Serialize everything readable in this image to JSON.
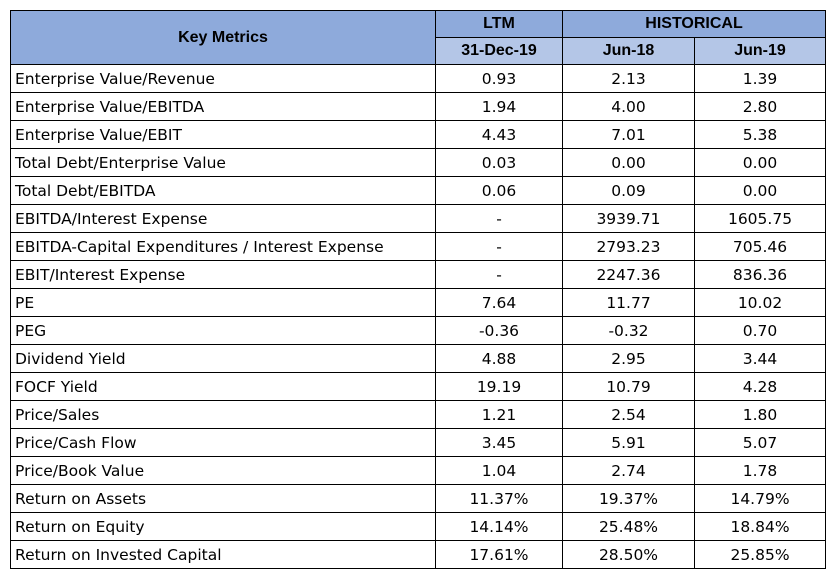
{
  "header": {
    "key_metrics": "Key Metrics",
    "ltm": "LTM",
    "historical": "HISTORICAL",
    "dates": [
      "31-Dec-19",
      "Jun-18",
      "Jun-19"
    ]
  },
  "rows": [
    {
      "label": "Enterprise Value/Revenue",
      "values": [
        "0.93",
        "2.13",
        "1.39"
      ]
    },
    {
      "label": "Enterprise Value/EBITDA",
      "values": [
        "1.94",
        "4.00",
        "2.80"
      ]
    },
    {
      "label": "Enterprise Value/EBIT",
      "values": [
        "4.43",
        "7.01",
        "5.38"
      ]
    },
    {
      "label": "Total Debt/Enterprise Value",
      "values": [
        "0.03",
        "0.00",
        "0.00"
      ]
    },
    {
      "label": "Total Debt/EBITDA",
      "values": [
        "0.06",
        "0.09",
        "0.00"
      ]
    },
    {
      "label": "EBITDA/Interest Expense",
      "values": [
        "-",
        "3939.71",
        "1605.75"
      ]
    },
    {
      "label": "EBITDA-Capital Expenditures / Interest Expense",
      "values": [
        "-",
        "2793.23",
        "705.46"
      ]
    },
    {
      "label": "EBIT/Interest Expense",
      "values": [
        "-",
        "2247.36",
        "836.36"
      ]
    },
    {
      "label": "PE",
      "values": [
        "7.64",
        "11.77",
        "10.02"
      ]
    },
    {
      "label": "PEG",
      "values": [
        "-0.36",
        "-0.32",
        "0.70"
      ]
    },
    {
      "label": "Dividend Yield",
      "values": [
        "4.88",
        "2.95",
        "3.44"
      ]
    },
    {
      "label": "FOCF Yield",
      "values": [
        "19.19",
        "10.79",
        "4.28"
      ]
    },
    {
      "label": "Price/Sales",
      "values": [
        "1.21",
        "2.54",
        "1.80"
      ]
    },
    {
      "label": "Price/Cash Flow",
      "values": [
        "3.45",
        "5.91",
        "5.07"
      ]
    },
    {
      "label": "Price/Book Value",
      "values": [
        "1.04",
        "2.74",
        "1.78"
      ]
    },
    {
      "label": "Return on Assets",
      "values": [
        "11.37%",
        "19.37%",
        "14.79%"
      ]
    },
    {
      "label": "Return on Equity",
      "values": [
        "14.14%",
        "25.48%",
        "18.84%"
      ]
    },
    {
      "label": "Return on Invested Capital",
      "values": [
        "17.61%",
        "28.50%",
        "25.85%"
      ]
    }
  ],
  "colors": {
    "header_bg": "#8eaadb",
    "subheader_bg": "#b4c6e7"
  }
}
